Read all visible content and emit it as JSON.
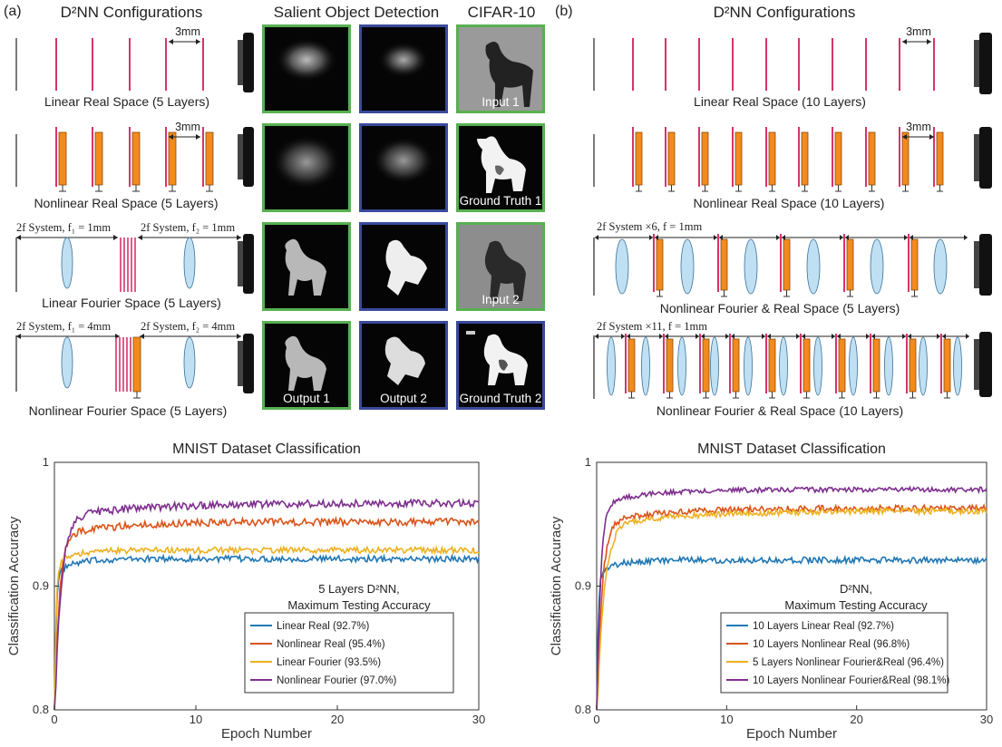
{
  "panel_a": {
    "label": "(a)",
    "config_title": "D²NN Configurations",
    "sod_title": "Salient Object Detection",
    "cifar_title": "CIFAR-10",
    "dim_label_1": "3mm",
    "dim_label_2": "3mm",
    "cap_linear_real": "Linear Real Space (5 Layers)",
    "cap_nonlinear_real": "Nonlinear Real Space (5 Layers)",
    "cap_linear_fourier": "Linear Fourier Space (5 Layers)",
    "cap_nonlinear_fourier": "Nonlinear Fourier Space (5 Layers)",
    "sys_1mm_a": "2f System, f₁ = 1mm",
    "sys_1mm_b": "2f System, f₂ = 1mm",
    "sys_4mm_a": "2f System, f₁ = 4mm",
    "sys_4mm_b": "2f System, f₂ = 4mm",
    "tiles": {
      "input_1": "Input 1",
      "ground_truth_1": "Ground Truth 1",
      "input_2": "Input 2",
      "output_1": "Output 1",
      "output_2": "Output 2",
      "ground_truth_2": "Ground Truth 2"
    }
  },
  "panel_b": {
    "label": "(b)",
    "config_title": "D²NN Configurations",
    "dim_label_1": "3mm",
    "dim_label_2": "3mm",
    "cap_linear_real": "Linear Real Space (10 Layers)",
    "cap_nonlinear_real": "Nonlinear Real Space (10 Layers)",
    "sys_x6": "2f System ×6, f = 1mm",
    "cap_nf_5": "Nonlinear Fourier & Real Space (5 Layers)",
    "sys_x11": "2f System ×11, f = 1mm",
    "cap_nf_10": "Nonlinear Fourier & Real Space (10 Layers)"
  },
  "colors": {
    "layer_line": "#d6336c",
    "modulator_fill": "#f28a1e",
    "lens_fill": "#bfe0f3",
    "green_frame": "#58b051",
    "blue_frame": "#3a4a9c",
    "series_blue": "#1f77b4",
    "series_orange": "#d95319",
    "series_yellow": "#edb120",
    "series_purple": "#7e2f8e"
  },
  "chart_data": [
    {
      "type": "line",
      "title": "MNIST Dataset Classification",
      "xlabel": "Epoch Number",
      "ylabel": "Classification Accuracy",
      "xlim": [
        0,
        30
      ],
      "ylim": [
        0.8,
        1.0
      ],
      "xticks": [
        "0",
        "10",
        "20",
        "30"
      ],
      "yticks": [
        "0.8",
        "0.9",
        "1"
      ],
      "annotation_line1": "5 Layers D²NN,",
      "annotation_line2": "Maximum Testing Accuracy",
      "legend_position": "bottom-right",
      "series": [
        {
          "name": "Linear Real (92.7%)",
          "color": "#1f77b4",
          "start": 0.8,
          "plateau": 0.922,
          "tau": 0.6,
          "noise": 0.0025
        },
        {
          "name": "Nonlinear Real (95.4%)",
          "color": "#d95319",
          "start": 0.8,
          "plateau": 0.952,
          "tau": 1.8,
          "noise": 0.003
        },
        {
          "name": "Linear Fourier (93.5%)",
          "color": "#edb120",
          "start": 0.8,
          "plateau": 0.929,
          "tau": 0.6,
          "noise": 0.0025
        },
        {
          "name": "Nonlinear Fourier (97.0%)",
          "color": "#7e2f8e",
          "start": 0.8,
          "plateau": 0.967,
          "tau": 2.5,
          "noise": 0.003
        }
      ]
    },
    {
      "type": "line",
      "title": "MNIST Dataset Classification",
      "xlabel": "Epoch Number",
      "ylabel": "Classification Accuracy",
      "xlim": [
        0,
        30
      ],
      "ylim": [
        0.8,
        1.0
      ],
      "xticks": [
        "0",
        "10",
        "20",
        "30"
      ],
      "yticks": [
        "0.8",
        "0.9",
        "1"
      ],
      "annotation_line1": "D²NN,",
      "annotation_line2": "Maximum Testing Accuracy",
      "legend_position": "bottom-right",
      "series": [
        {
          "name": "10 Layers Linear Real (92.7%)",
          "color": "#1f77b4",
          "start": 0.8,
          "plateau": 0.921,
          "tau": 0.6,
          "noise": 0.0025
        },
        {
          "name": "10 Layers Nonlinear Real (96.8%)",
          "color": "#d95319",
          "start": 0.8,
          "plateau": 0.963,
          "tau": 2.2,
          "noise": 0.0025
        },
        {
          "name": "5 Layers Nonlinear Fourier&Real (96.4%)",
          "color": "#edb120",
          "start": 0.8,
          "plateau": 0.961,
          "tau": 3.0,
          "noise": 0.0025
        },
        {
          "name": "10 Layers Nonlinear Fourier&Real (98.1%)",
          "color": "#7e2f8e",
          "start": 0.8,
          "plateau": 0.978,
          "tau": 1.6,
          "noise": 0.002
        }
      ]
    }
  ]
}
